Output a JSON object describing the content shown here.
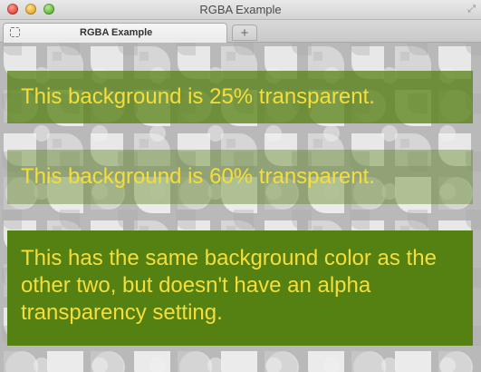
{
  "window": {
    "title": "RGBA Example"
  },
  "tabs": [
    {
      "label": "RGBA Example",
      "active": true
    }
  ],
  "new_tab_label": "+",
  "icons": {
    "close": "close-window-icon",
    "minimize": "minimize-window-icon",
    "zoom": "zoom-window-icon",
    "fullscreen": "fullscreen-icon",
    "favicon": "page-favicon-icon",
    "new_tab": "plus-icon"
  },
  "content": {
    "boxes": [
      {
        "text": "This background is 25% transparent.",
        "background": "#558012",
        "alpha": 0.75
      },
      {
        "text": "This background is 60% transparent.",
        "background": "#558012",
        "alpha": 0.4
      },
      {
        "text": "This has the same background color as the other two, but doesn't have an alpha transparency setting.",
        "background": "#558012",
        "alpha": 1.0
      }
    ],
    "text_color": "#f5de3a",
    "pattern_background": "#bdbdbd"
  }
}
